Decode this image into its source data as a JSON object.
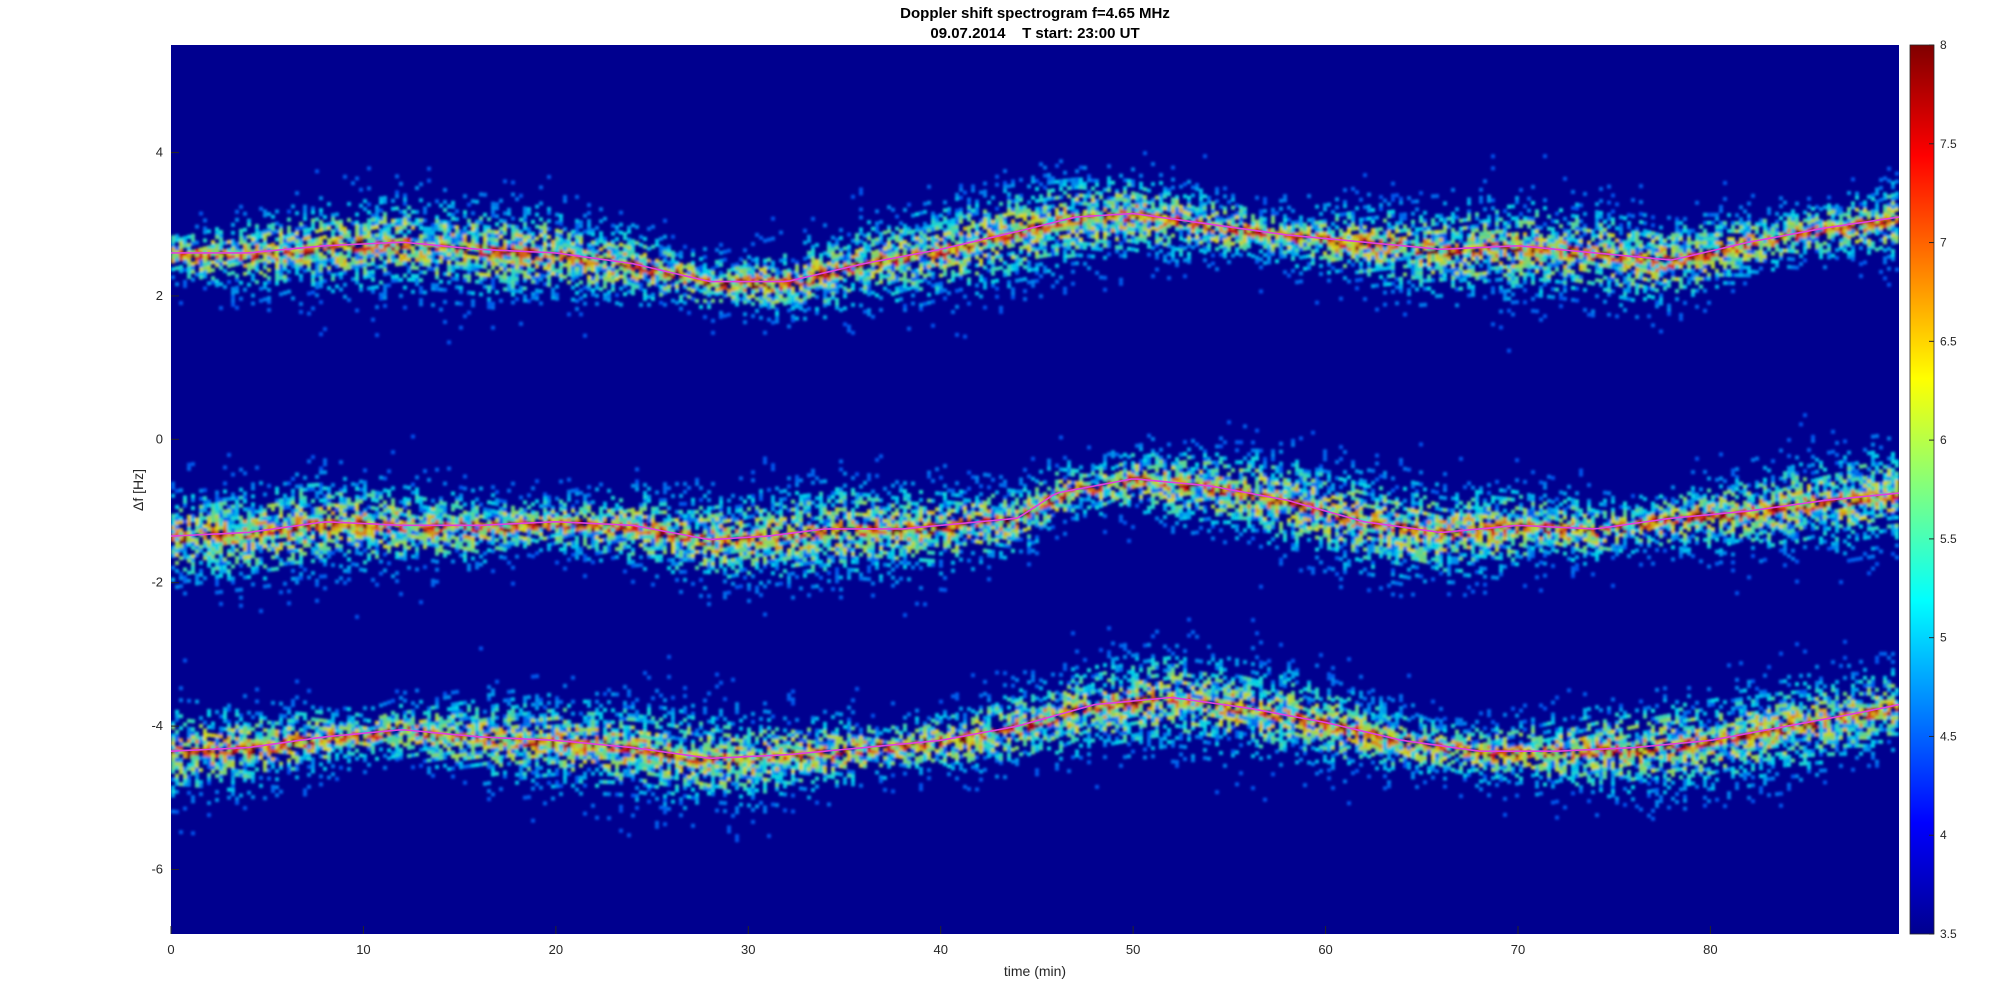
{
  "chart_data": {
    "type": "heatmap",
    "title": "Doppler shift spectrogram f=4.65 MHz",
    "subtitle": "09.07.2014    T start: 23:00 UT",
    "xlabel": "time (min)",
    "ylabel": "Δf [Hz]",
    "xlim": [
      0,
      89.8
    ],
    "ylim": [
      -6.9,
      5.5
    ],
    "x_ticks": [
      0,
      10,
      20,
      30,
      40,
      50,
      60,
      70,
      80
    ],
    "y_ticks": [
      4,
      2,
      0,
      -2,
      -4,
      -6
    ],
    "colorbar": {
      "range": [
        3.5,
        8
      ],
      "ticks": [
        8,
        7.5,
        7,
        6.5,
        6,
        5.5,
        5,
        4.5,
        4,
        3.5
      ],
      "colormap": "jet"
    },
    "background_color": "#00008f",
    "traces": [
      {
        "x": [
          0,
          4,
          8,
          12,
          16,
          20,
          24,
          28,
          32,
          36,
          40,
          44,
          47,
          50,
          54,
          58,
          62,
          66,
          70,
          74,
          78,
          82,
          86,
          89.8
        ],
        "y": [
          2.6,
          2.6,
          2.7,
          2.75,
          2.65,
          2.6,
          2.45,
          2.2,
          2.2,
          2.45,
          2.65,
          2.9,
          3.1,
          3.15,
          3.0,
          2.85,
          2.75,
          2.65,
          2.7,
          2.6,
          2.5,
          2.75,
          2.95,
          3.1
        ]
      },
      {
        "x": [
          0,
          4,
          8,
          12,
          16,
          20,
          24,
          28,
          31,
          34,
          38,
          42,
          44,
          46,
          50,
          54,
          58,
          62,
          66,
          70,
          74,
          78,
          82,
          86,
          89.8
        ],
        "y": [
          -1.35,
          -1.3,
          -1.15,
          -1.2,
          -1.2,
          -1.15,
          -1.2,
          -1.4,
          -1.35,
          -1.25,
          -1.25,
          -1.15,
          -1.1,
          -0.75,
          -0.55,
          -0.65,
          -0.85,
          -1.15,
          -1.3,
          -1.2,
          -1.25,
          -1.1,
          -1.0,
          -0.85,
          -0.75
        ]
      },
      {
        "x": [
          0,
          4,
          8,
          12,
          16,
          20,
          24,
          28,
          32,
          36,
          40,
          44,
          48,
          52,
          56,
          60,
          64,
          68,
          72,
          76,
          80,
          84,
          88,
          89.8
        ],
        "y": [
          -4.35,
          -4.3,
          -4.15,
          -4.05,
          -4.15,
          -4.2,
          -4.3,
          -4.45,
          -4.4,
          -4.3,
          -4.2,
          -4.0,
          -3.7,
          -3.6,
          -3.75,
          -3.95,
          -4.2,
          -4.35,
          -4.35,
          -4.3,
          -4.2,
          -4.0,
          -3.8,
          -3.7
        ]
      }
    ]
  }
}
